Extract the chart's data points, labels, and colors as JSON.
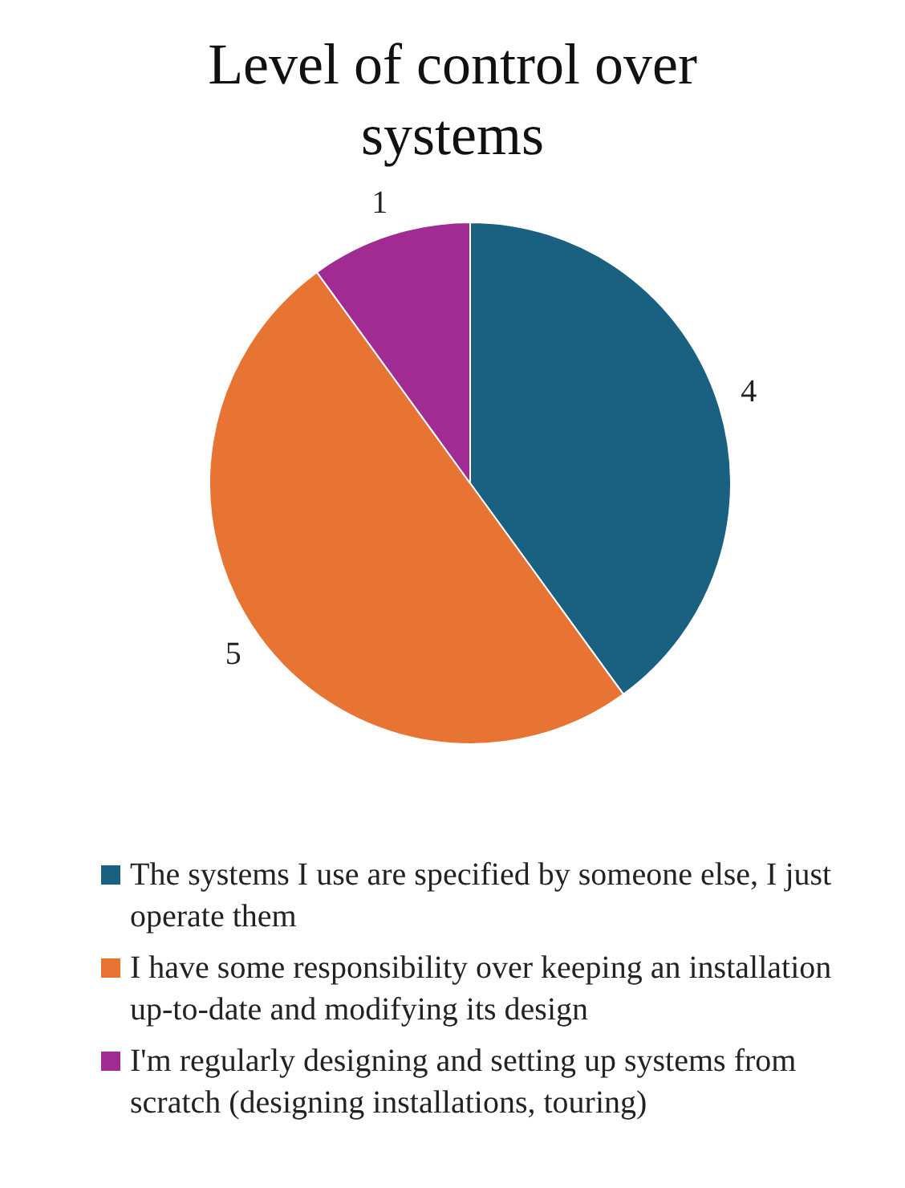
{
  "chart_data": {
    "type": "pie",
    "title": "Level of control over systems",
    "categories": [
      "The systems I use are specified by someone else, I just operate them",
      "I have some responsibility over keeping an installation up-to-date and modifying its design",
      "I'm regularly designing and setting up systems from scratch (designing installations, touring)"
    ],
    "values": [
      4,
      5,
      1
    ],
    "colors": [
      "#1a6080",
      "#e87434",
      "#a02b93"
    ],
    "data_labels": true,
    "legend": "bottom"
  }
}
